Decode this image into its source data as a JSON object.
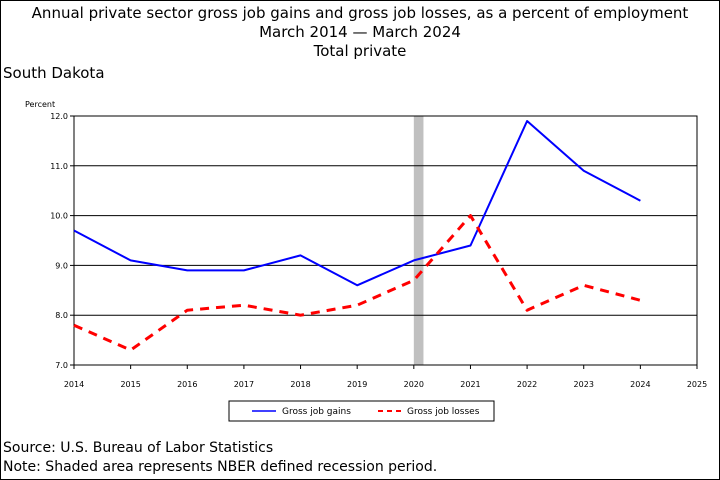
{
  "title": {
    "line1": "Annual private sector gross job gains and gross job losses, as a percent of employment",
    "line2": "March 2014 — March 2024",
    "line3": "Total private"
  },
  "region": "South Dakota",
  "footer": {
    "source": "Source: U.S. Bureau of Labor Statistics",
    "note": "Note: Shaded area represents NBER defined recession period."
  },
  "chart_data": {
    "type": "line",
    "ylabel": "Percent",
    "xlabel": "",
    "xlim": [
      2014,
      2025
    ],
    "ylim": [
      7.0,
      12.0
    ],
    "x_ticks": [
      2014,
      2015,
      2016,
      2017,
      2018,
      2019,
      2020,
      2021,
      2022,
      2023,
      2024,
      2025
    ],
    "y_ticks": [
      "7.0",
      "8.0",
      "9.0",
      "10.0",
      "11.0",
      "12.0"
    ],
    "grid": "horizontal",
    "recession_band": {
      "from": 2020.0,
      "to": 2020.17,
      "color": "#c0c0c0"
    },
    "legend_position": "bottom",
    "series": [
      {
        "name": "Gross job gains",
        "color": "#0000ff",
        "style": "solid",
        "x": [
          2014,
          2015,
          2016,
          2017,
          2018,
          2019,
          2020,
          2021,
          2022,
          2023,
          2024
        ],
        "values": [
          9.7,
          9.1,
          8.9,
          8.9,
          9.2,
          8.6,
          9.1,
          9.4,
          11.9,
          10.9,
          10.3
        ]
      },
      {
        "name": "Gross job losses",
        "color": "#ff0000",
        "style": "dashed",
        "x": [
          2014,
          2015,
          2016,
          2017,
          2018,
          2019,
          2020,
          2021,
          2022,
          2023,
          2024
        ],
        "values": [
          7.8,
          7.3,
          8.1,
          8.2,
          8.0,
          8.2,
          8.7,
          10.0,
          8.1,
          8.6,
          8.3
        ]
      }
    ]
  }
}
